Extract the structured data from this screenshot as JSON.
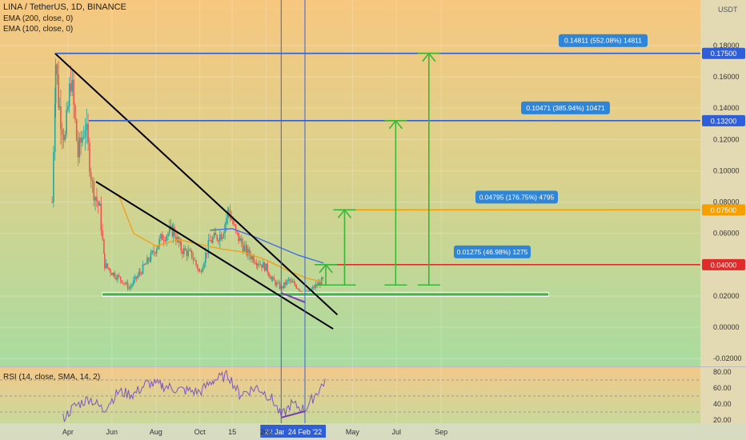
{
  "header": {
    "title": "LINA / TetherUS, 1D, BINANCE",
    "ema200": "EMA (200, close, 0)",
    "ema100": "EMA (100, close, 0)",
    "currency": "USDT"
  },
  "rsi": {
    "label": "RSI (14, close, SMA, 14, 2)",
    "ticks": [
      "80.00",
      "60.00",
      "40.00",
      "20.00"
    ]
  },
  "colors": {
    "bg_top": "#f7c77f",
    "bg_bottom": "#a9dca0",
    "candle_up": "#26a69a",
    "candle_down": "#ef5350",
    "trendline": "#000000",
    "ema200": "#3f6fe8",
    "ema100": "#f0a020",
    "resistance": "#2f5fd8",
    "target_orange": "#f5a000",
    "target_red": "#e02b2b",
    "support": "#4caf50",
    "measure": "#36b836",
    "label_bg": "#2f86d8",
    "rsi_line": "#7e57c2"
  },
  "chart_data": {
    "type": "candlestick",
    "title": "LINA / TetherUS, 1D, BINANCE",
    "y_unit": "USDT",
    "ylim": [
      -0.025,
      0.205
    ],
    "y_ticks": [
      "0.18000",
      "0.16000",
      "0.14000",
      "0.12000",
      "0.10000",
      "0.08000",
      "0.06000",
      "0.02000",
      "0.00000",
      "-0.02000"
    ],
    "x_ticks": [
      "Apr",
      "Jun",
      "Aug",
      "Oct",
      "15",
      "202",
      "May",
      "Jul",
      "Sep"
    ],
    "date_markers": [
      "22 Jan '22",
      "24 Feb '22"
    ],
    "price_levels": [
      {
        "label": "0.17500",
        "value": 0.175
      },
      {
        "label": "0.13200",
        "value": 0.132
      },
      {
        "label": "0.07500",
        "value": 0.075
      },
      {
        "label": "0.04000",
        "value": 0.04
      }
    ],
    "support_zone": 0.021,
    "targets": [
      {
        "label": "0.01275 (46.98%) 1275",
        "from": 0.027,
        "to": 0.04
      },
      {
        "label": "0.04795 (176.75%) 4795",
        "from": 0.027,
        "to": 0.075
      },
      {
        "label": "0.10471 (385.94%) 10471",
        "from": 0.027,
        "to": 0.132
      },
      {
        "label": "0.14811 (552.08%) 14811",
        "from": 0.027,
        "to": 0.175
      }
    ],
    "close_path": [
      [
        "2021-03-10",
        0.08
      ],
      [
        "2021-03-15",
        0.17
      ],
      [
        "2021-03-20",
        0.14
      ],
      [
        "2021-03-28",
        0.12
      ],
      [
        "2021-04-05",
        0.16
      ],
      [
        "2021-04-15",
        0.11
      ],
      [
        "2021-04-25",
        0.13
      ],
      [
        "2021-05-05",
        0.09
      ],
      [
        "2021-05-15",
        0.075
      ],
      [
        "2021-05-22",
        0.04
      ],
      [
        "2021-06-01",
        0.035
      ],
      [
        "2021-06-15",
        0.03
      ],
      [
        "2021-06-25",
        0.025
      ],
      [
        "2021-07-10",
        0.035
      ],
      [
        "2021-07-25",
        0.045
      ],
      [
        "2021-08-10",
        0.058
      ],
      [
        "2021-08-25",
        0.062
      ],
      [
        "2021-09-05",
        0.05
      ],
      [
        "2021-09-20",
        0.046
      ],
      [
        "2021-10-01",
        0.035
      ],
      [
        "2021-10-15",
        0.055
      ],
      [
        "2021-11-01",
        0.06
      ],
      [
        "2021-11-10",
        0.075
      ],
      [
        "2021-11-20",
        0.06
      ],
      [
        "2021-12-05",
        0.048
      ],
      [
        "2021-12-20",
        0.042
      ],
      [
        "2022-01-01",
        0.038
      ],
      [
        "2022-01-10",
        0.03
      ],
      [
        "2022-01-22",
        0.025
      ],
      [
        "2022-02-01",
        0.03
      ],
      [
        "2022-02-10",
        0.027
      ],
      [
        "2022-02-24",
        0.021
      ],
      [
        "2022-03-05",
        0.024
      ],
      [
        "2022-03-15",
        0.028
      ],
      [
        "2022-03-22",
        0.031
      ]
    ],
    "ema100_path": [
      [
        "2021-06-10",
        0.085
      ],
      [
        "2021-07-01",
        0.06
      ],
      [
        "2021-08-01",
        0.052
      ],
      [
        "2021-09-01",
        0.056
      ],
      [
        "2021-10-01",
        0.053
      ],
      [
        "2021-11-01",
        0.05
      ],
      [
        "2021-12-01",
        0.048
      ],
      [
        "2022-01-01",
        0.043
      ],
      [
        "2022-02-01",
        0.036
      ],
      [
        "2022-03-01",
        0.031
      ],
      [
        "2022-03-22",
        0.029
      ]
    ],
    "ema200_path": [
      [
        "2021-10-15",
        0.062
      ],
      [
        "2021-11-15",
        0.063
      ],
      [
        "2021-12-15",
        0.058
      ],
      [
        "2022-01-15",
        0.052
      ],
      [
        "2022-02-15",
        0.046
      ],
      [
        "2022-03-22",
        0.041
      ]
    ],
    "rsi_path": [
      [
        "2021-03-25",
        22
      ],
      [
        "2021-04-10",
        37
      ],
      [
        "2021-05-01",
        47
      ],
      [
        "2021-05-20",
        33
      ],
      [
        "2021-06-10",
        55
      ],
      [
        "2021-07-01",
        52
      ],
      [
        "2021-07-20",
        66
      ],
      [
        "2021-08-10",
        63
      ],
      [
        "2021-09-01",
        58
      ],
      [
        "2021-10-01",
        55
      ],
      [
        "2021-10-20",
        70
      ],
      [
        "2021-11-10",
        76
      ],
      [
        "2021-11-25",
        52
      ],
      [
        "2021-12-20",
        61
      ],
      [
        "2022-01-10",
        46
      ],
      [
        "2022-01-22",
        24
      ],
      [
        "2022-02-05",
        40
      ],
      [
        "2022-02-24",
        33
      ],
      [
        "2022-03-05",
        45
      ],
      [
        "2022-03-20",
        64
      ],
      [
        "2022-03-25",
        71
      ]
    ]
  }
}
